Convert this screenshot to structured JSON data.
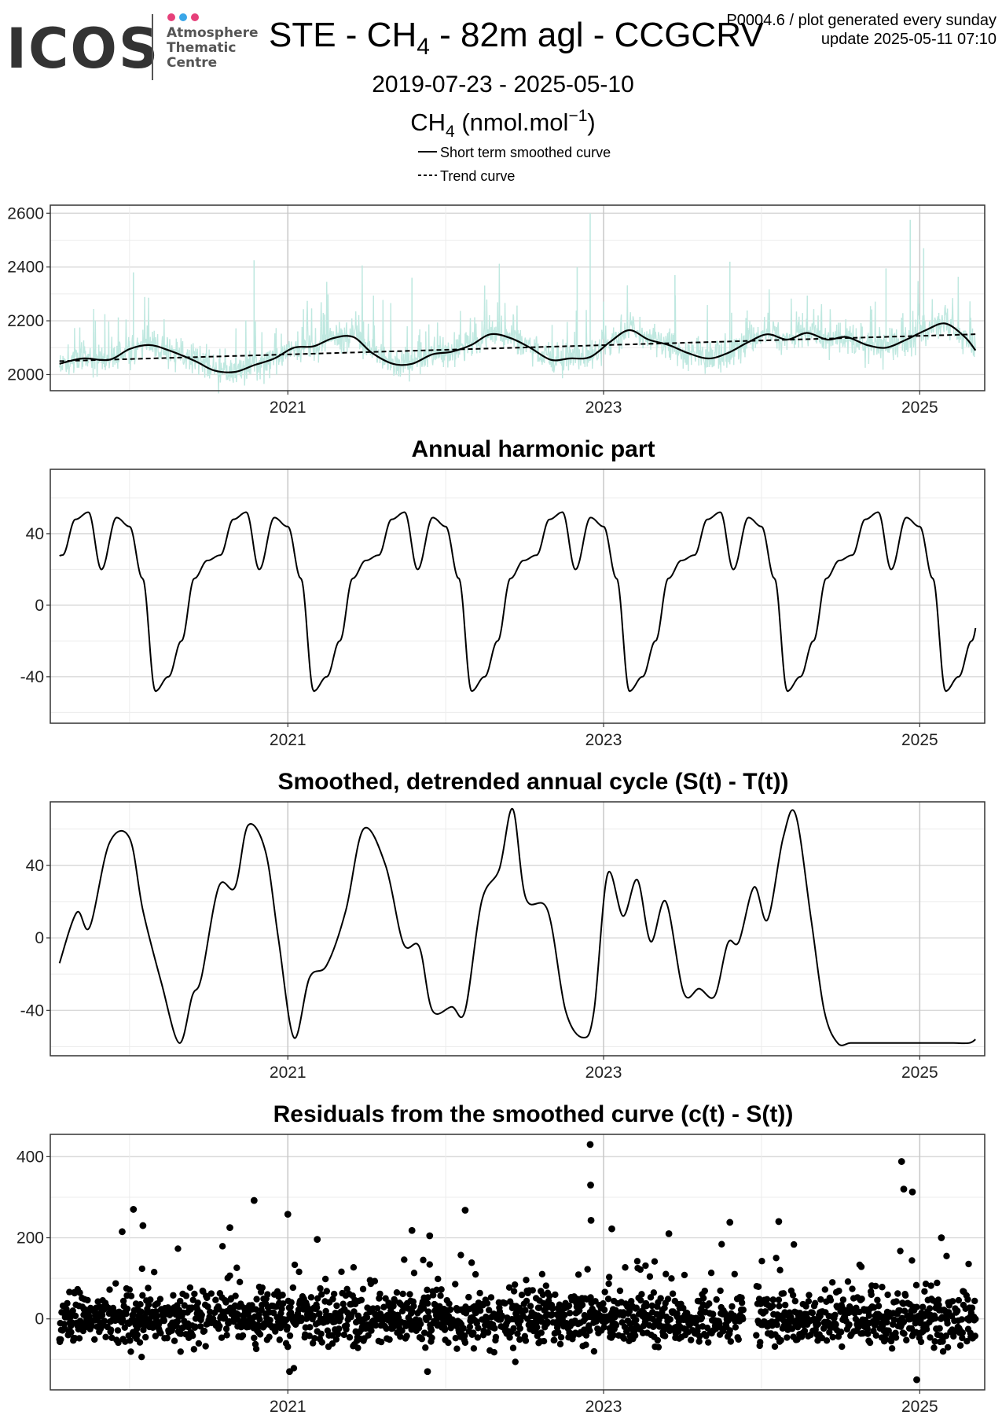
{
  "header": {
    "logo": {
      "word": "ICOS",
      "lines": [
        "Atmosphere",
        "Thematic",
        "Centre"
      ],
      "dot_colors": [
        "#e6407a",
        "#3aa6e8",
        "#e6407a"
      ],
      "word_color": "#333333",
      "sub_color": "#555555"
    },
    "title_pre": "STE - CH",
    "title_sub": "4",
    "title_post": " - 82m agl - CCGCRV",
    "info_line1": "P0004.6 / plot generated every sunday",
    "info_line2": "update  2025-05-11 07:10",
    "date_range": "2019-07-23 - 2025-05-10",
    "unit_pre": "CH",
    "unit_sub": "4",
    "unit_mid": " (nmol.mol",
    "unit_sup": "−1",
    "unit_post": ")",
    "legend": [
      {
        "label": "Short term smoothed curve",
        "style": "solid"
      },
      {
        "label": "Trend curve",
        "style": "dashed"
      }
    ]
  },
  "colors": {
    "raw": "#bfe8e0",
    "curve": "#000000",
    "grid_major": "#d9d9d9",
    "grid_minor": "#ececec",
    "frame": "#333333"
  },
  "chart_data": [
    {
      "type": "line",
      "title": "",
      "xlabel": "",
      "ylabel": "",
      "xlim": [
        "2019-07-23",
        "2025-05-10"
      ],
      "ylim": [
        1940,
        2630
      ],
      "x_ticks": [
        "2021",
        "2023",
        "2025"
      ],
      "y_ticks": [
        2000,
        2200,
        2400,
        2600
      ],
      "grid": true,
      "series": [
        {
          "name": "Short term smoothed curve",
          "style": "solid",
          "x": [
            "2019-07-23",
            "2019-09-15",
            "2019-11-15",
            "2020-01-01",
            "2020-02-15",
            "2020-04-01",
            "2020-06-01",
            "2020-07-15",
            "2020-09-01",
            "2020-10-15",
            "2020-12-01",
            "2021-01-15",
            "2021-03-01",
            "2021-04-15",
            "2021-06-01",
            "2021-07-15",
            "2021-09-01",
            "2021-10-15",
            "2021-12-01",
            "2022-01-15",
            "2022-03-01",
            "2022-04-15",
            "2022-06-01",
            "2022-07-15",
            "2022-09-01",
            "2022-10-15",
            "2022-12-01",
            "2023-01-15",
            "2023-03-01",
            "2023-04-15",
            "2023-06-01",
            "2023-07-15",
            "2023-09-01",
            "2023-10-15",
            "2023-12-01",
            "2024-01-15",
            "2024-03-01",
            "2024-04-15",
            "2024-06-01",
            "2024-07-15",
            "2024-09-01",
            "2024-10-15",
            "2024-12-01",
            "2025-01-15",
            "2025-03-01",
            "2025-04-15",
            "2025-05-10"
          ],
          "y": [
            2040,
            2060,
            2055,
            2095,
            2110,
            2090,
            2050,
            2015,
            2010,
            2035,
            2060,
            2100,
            2105,
            2135,
            2140,
            2080,
            2040,
            2040,
            2075,
            2085,
            2110,
            2150,
            2135,
            2100,
            2055,
            2060,
            2065,
            2120,
            2165,
            2130,
            2110,
            2080,
            2060,
            2080,
            2120,
            2150,
            2130,
            2155,
            2130,
            2140,
            2110,
            2100,
            2130,
            2165,
            2190,
            2140,
            2090
          ]
        },
        {
          "name": "Trend curve",
          "style": "dashed",
          "x": [
            "2019-07-23",
            "2025-05-10"
          ],
          "y": [
            2050,
            2150
          ]
        },
        {
          "name": "",
          "style": "raw-daily",
          "points": "generated-daily"
        }
      ]
    },
    {
      "type": "line",
      "title": "Annual harmonic part",
      "xlabel": "",
      "ylabel": "",
      "xlim": [
        "2019-07-23",
        "2025-05-10"
      ],
      "ylim": [
        -66,
        76
      ],
      "x_ticks": [
        "2021",
        "2023",
        "2025"
      ],
      "y_ticks": [
        -40,
        0,
        40
      ],
      "grid": true,
      "cycle": {
        "doy": [
          0,
          30,
          60,
          90,
          120,
          150,
          180,
          210,
          240,
          270,
          300,
          335,
          365
        ],
        "y": [
          44,
          15,
          -48,
          -40,
          -20,
          15,
          25,
          28,
          48,
          52,
          20,
          49,
          44
        ]
      }
    },
    {
      "type": "line",
      "title": "Smoothed, detrended annual cycle (S(t) - T(t))",
      "xlabel": "",
      "ylabel": "",
      "xlim": [
        "2019-07-23",
        "2025-05-10"
      ],
      "ylim": [
        -65,
        75
      ],
      "x_ticks": [
        "2021",
        "2023",
        "2025"
      ],
      "y_ticks": [
        -40,
        0,
        40
      ],
      "grid": true,
      "series": [
        {
          "name": "",
          "x": [
            "2019-07-23",
            "2019-09-01",
            "2019-10-01",
            "2019-11-15",
            "2020-01-01",
            "2020-02-01",
            "2020-03-15",
            "2020-04-25",
            "2020-05-25",
            "2020-06-15",
            "2020-07-25",
            "2020-09-01",
            "2020-10-01",
            "2020-11-10",
            "2020-12-10",
            "2021-01-15",
            "2021-02-20",
            "2021-04-01",
            "2021-05-15",
            "2021-06-25",
            "2021-08-15",
            "2021-09-25",
            "2021-11-01",
            "2021-12-01",
            "2022-01-15",
            "2022-02-15",
            "2022-03-25",
            "2022-05-05",
            "2022-06-05",
            "2022-07-05",
            "2022-08-25",
            "2022-10-05",
            "2022-11-15",
            "2022-12-10",
            "2023-01-10",
            "2023-02-15",
            "2023-03-20",
            "2023-04-20",
            "2023-05-25",
            "2023-07-05",
            "2023-08-10",
            "2023-09-15",
            "2023-10-15",
            "2023-11-10",
            "2023-12-15",
            "2024-01-15",
            "2024-02-20",
            "2024-03-20",
            "2024-04-25",
            "2024-05-25",
            "2024-06-25",
            "2024-07-25",
            "2024-09-01",
            "2024-10-05",
            "2024-11-05",
            "2024-12-10",
            "2025-01-10",
            "2025-02-10",
            "2025-03-20",
            "2025-04-25",
            "2025-05-10"
          ],
          "y": [
            -14,
            14,
            6,
            52,
            55,
            15,
            -25,
            -58,
            -32,
            -22,
            28,
            28,
            62,
            48,
            0,
            -55,
            -22,
            -15,
            15,
            60,
            40,
            -3,
            -5,
            -40,
            -38,
            -40,
            20,
            38,
            71,
            22,
            15,
            -40,
            -55,
            -40,
            35,
            12,
            32,
            -2,
            20,
            -30,
            -28,
            -32,
            -3,
            -2,
            28,
            10,
            55,
            68,
            10,
            -40,
            -58,
            -58,
            -58,
            -58,
            -58,
            -58,
            -58,
            -58,
            -58,
            -58,
            -56
          ]
        }
      ]
    },
    {
      "type": "scatter",
      "title": "Residuals from the smoothed curve (c(t) - S(t))",
      "xlabel": "",
      "ylabel": "",
      "xlim": [
        "2019-07-23",
        "2025-05-10"
      ],
      "ylim": [
        -175,
        455
      ],
      "x_ticks": [
        "2021",
        "2023",
        "2025"
      ],
      "y_ticks": [
        0,
        200,
        400
      ],
      "grid": true,
      "series": [
        {
          "name": "",
          "points": "generated-daily",
          "outliers": [
            {
              "x": "2020-01-10",
              "y": 270
            },
            {
              "x": "2019-12-15",
              "y": 215
            },
            {
              "x": "2020-02-01",
              "y": 230
            },
            {
              "x": "2020-08-20",
              "y": 225
            },
            {
              "x": "2020-10-15",
              "y": 292
            },
            {
              "x": "2021-01-01",
              "y": 258
            },
            {
              "x": "2021-03-10",
              "y": 196
            },
            {
              "x": "2022-02-15",
              "y": 268
            },
            {
              "x": "2021-10-15",
              "y": 218
            },
            {
              "x": "2021-11-25",
              "y": 205
            },
            {
              "x": "2022-12-01",
              "y": 430
            },
            {
              "x": "2022-12-02",
              "y": 330
            },
            {
              "x": "2022-12-03",
              "y": 243
            },
            {
              "x": "2023-01-20",
              "y": 222
            },
            {
              "x": "2023-06-01",
              "y": 210
            },
            {
              "x": "2023-10-20",
              "y": 238
            },
            {
              "x": "2024-02-10",
              "y": 240
            },
            {
              "x": "2024-11-20",
              "y": 388
            },
            {
              "x": "2024-11-25",
              "y": 320
            },
            {
              "x": "2024-12-15",
              "y": 313
            },
            {
              "x": "2025-02-20",
              "y": 200
            },
            {
              "x": "2024-12-25",
              "y": -150
            },
            {
              "x": "2021-01-05",
              "y": -130
            },
            {
              "x": "2021-11-20",
              "y": -130
            }
          ]
        }
      ]
    }
  ]
}
